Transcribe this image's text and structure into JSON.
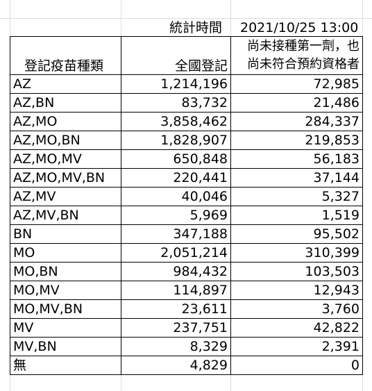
{
  "header": {
    "stat_label": "統計時間",
    "stat_value": "2021/10/25 13:00"
  },
  "columns": {
    "type": "登記疫苗種類",
    "total": "全國登記",
    "pending_line1": "尚未接種第一劑，也",
    "pending_line2": "尚未符合預約資格者"
  },
  "rows": [
    {
      "type": "AZ",
      "total": "1,214,196",
      "pending": "72,985"
    },
    {
      "type": "AZ,BN",
      "total": "83,732",
      "pending": "21,486"
    },
    {
      "type": "AZ,MO",
      "total": "3,858,462",
      "pending": "284,337"
    },
    {
      "type": "AZ,MO,BN",
      "total": "1,828,907",
      "pending": "219,853"
    },
    {
      "type": "AZ,MO,MV",
      "total": "650,848",
      "pending": "56,183"
    },
    {
      "type": "AZ,MO,MV,BN",
      "total": "220,441",
      "pending": "37,144"
    },
    {
      "type": "AZ,MV",
      "total": "40,046",
      "pending": "5,327"
    },
    {
      "type": "AZ,MV,BN",
      "total": "5,969",
      "pending": "1,519"
    },
    {
      "type": "BN",
      "total": "347,188",
      "pending": "95,502"
    },
    {
      "type": "MO",
      "total": "2,051,214",
      "pending": "310,399"
    },
    {
      "type": "MO,BN",
      "total": "984,432",
      "pending": "103,503"
    },
    {
      "type": "MO,MV",
      "total": "114,897",
      "pending": "12,943"
    },
    {
      "type": "MO,MV,BN",
      "total": "23,611",
      "pending": "3,760"
    },
    {
      "type": "MV",
      "total": "237,751",
      "pending": "42,822"
    },
    {
      "type": "MV,BN",
      "total": "8,329",
      "pending": "2,391"
    },
    {
      "type": "無",
      "total": "4,829",
      "pending": "0"
    }
  ]
}
